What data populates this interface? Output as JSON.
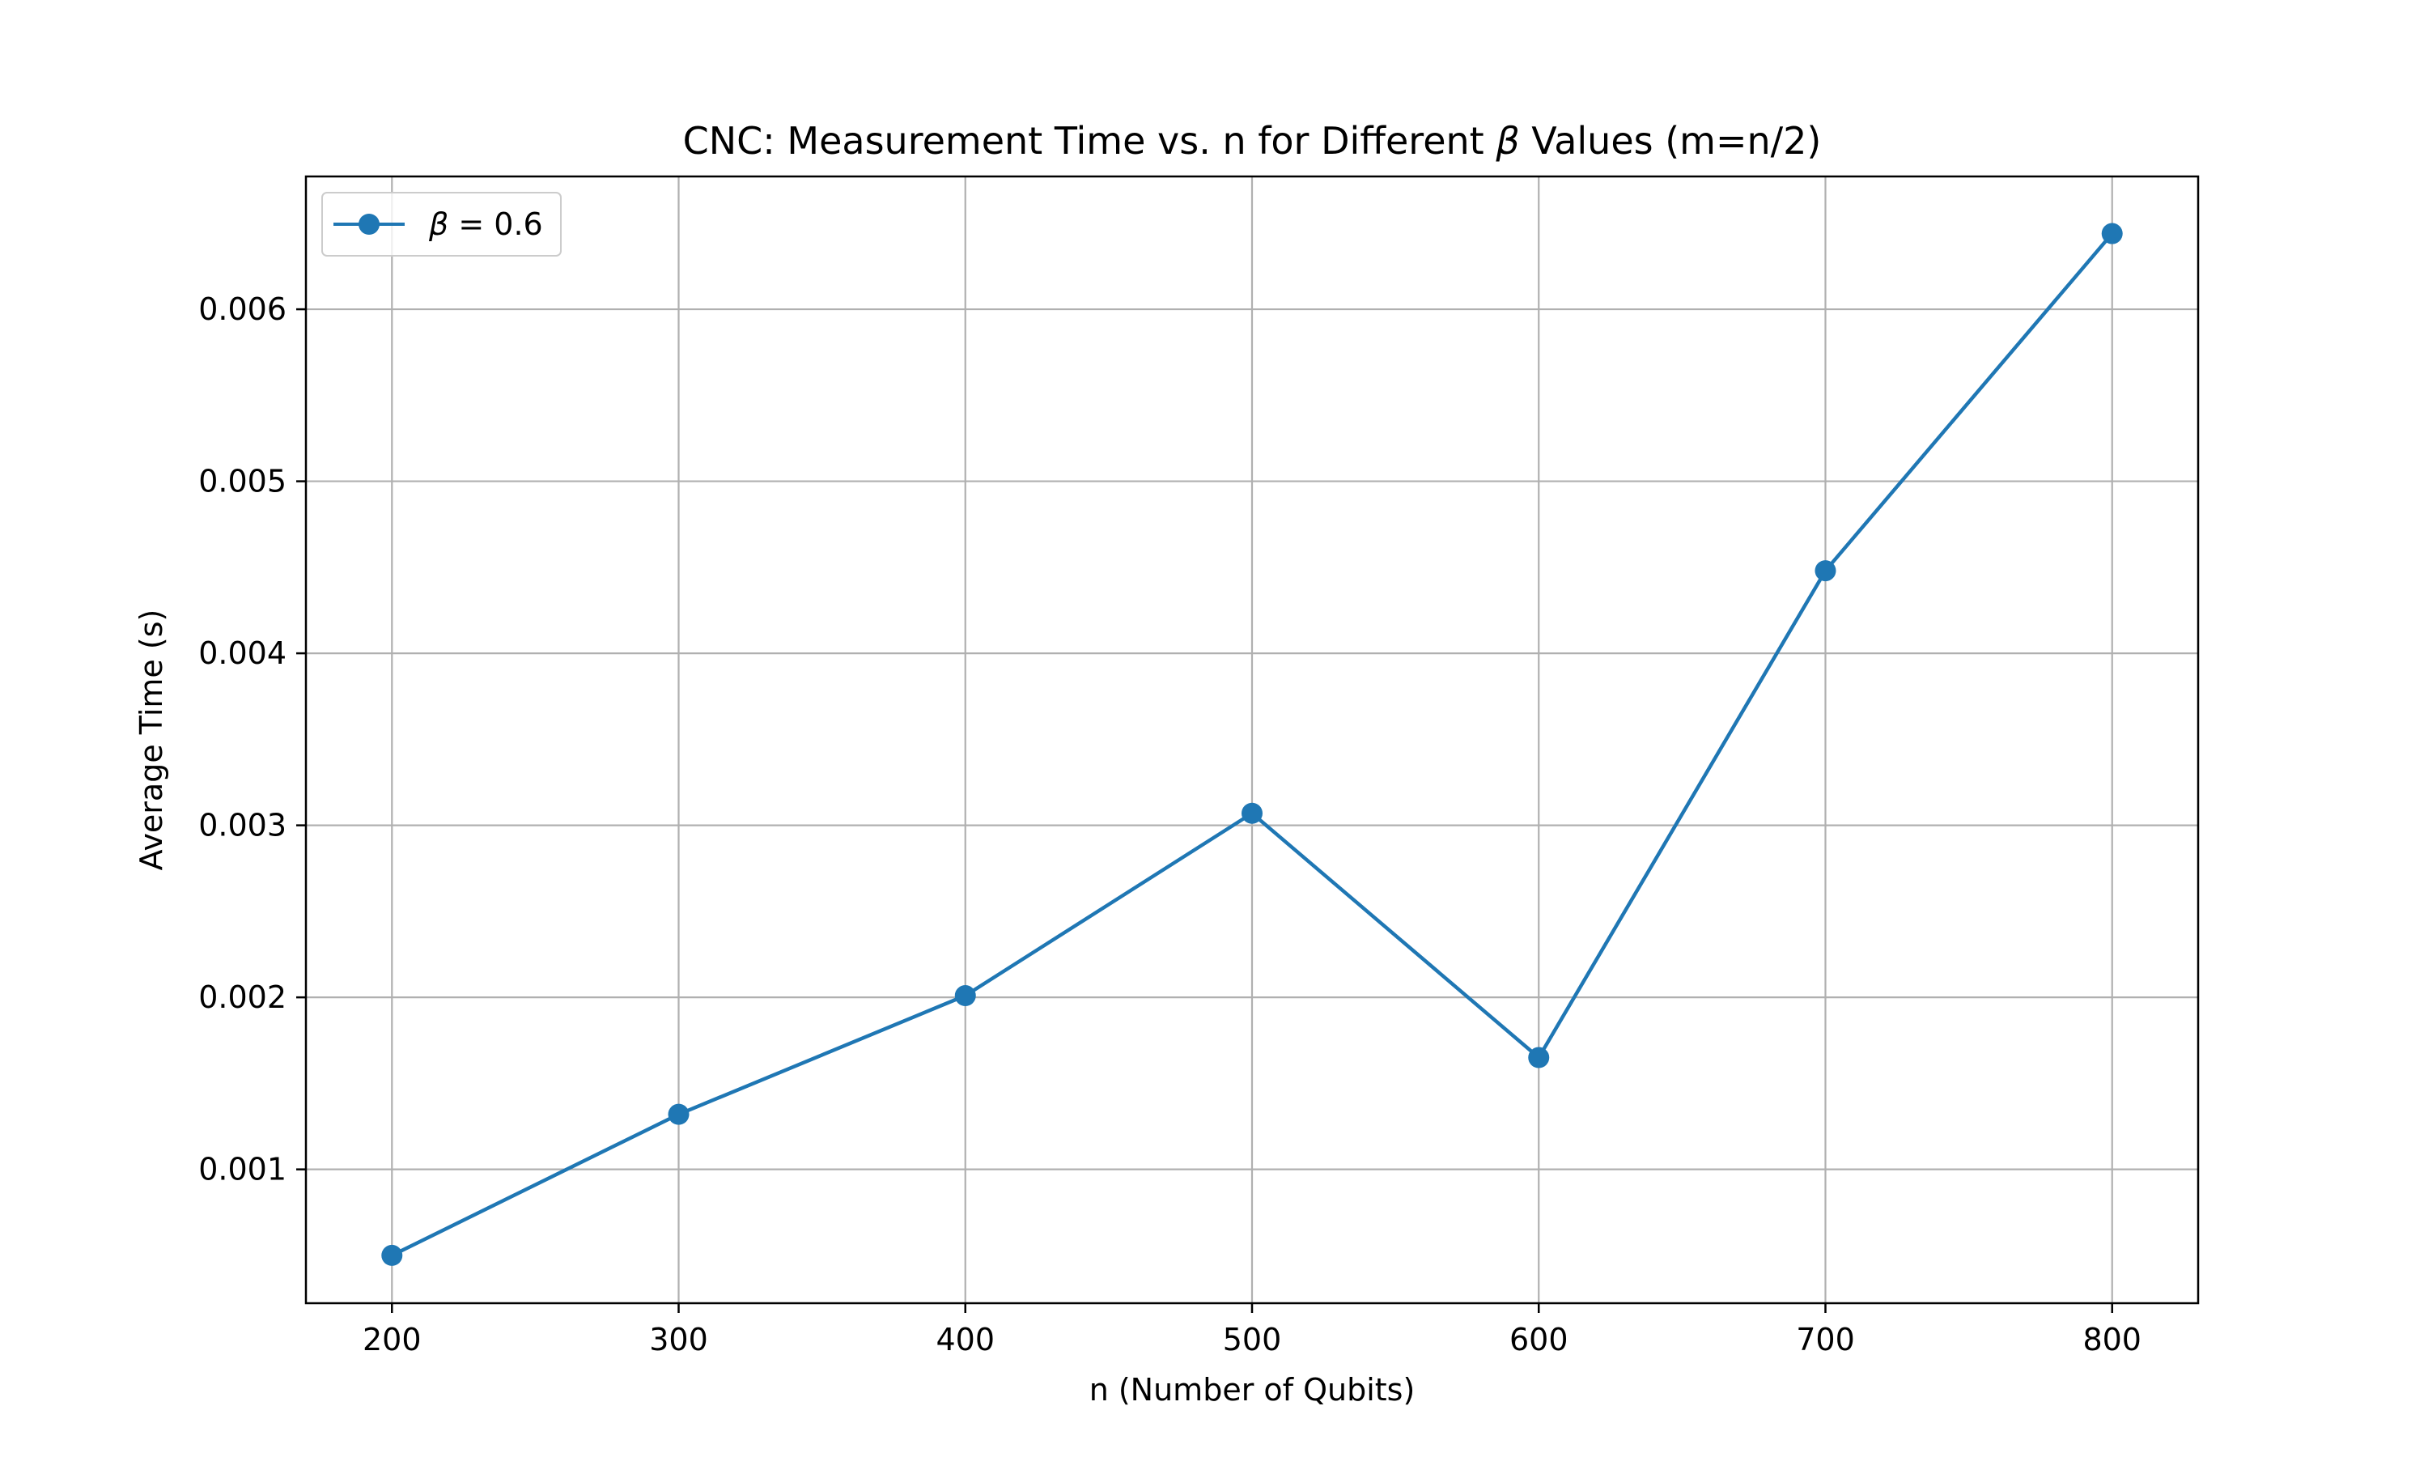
{
  "chart_data": {
    "type": "line",
    "title_parts": [
      "CNC: Measurement Time vs. n for Different ",
      "β",
      " Values (m=n/2)"
    ],
    "xlabel": "n (Number of Qubits)",
    "ylabel": "Average Time (s)",
    "x": [
      200,
      300,
      400,
      500,
      600,
      700,
      800
    ],
    "series": [
      {
        "name_parts": [
          "β",
          " = 0.6"
        ],
        "color": "#1f77b4",
        "marker": "circle",
        "values": [
          0.0005,
          0.00132,
          0.00201,
          0.00307,
          0.00165,
          0.00448,
          0.00644
        ]
      }
    ],
    "xlim": [
      170,
      830
    ],
    "ylim": [
      0.000222,
      0.006772
    ],
    "xticks": [
      200,
      300,
      400,
      500,
      600,
      700,
      800
    ],
    "xtick_labels": [
      "200",
      "300",
      "400",
      "500",
      "600",
      "700",
      "800"
    ],
    "yticks": [
      0.001,
      0.002,
      0.003,
      0.004,
      0.005,
      0.006
    ],
    "ytick_labels": [
      "0.001",
      "0.002",
      "0.003",
      "0.004",
      "0.005",
      "0.006"
    ],
    "grid": true,
    "legend_position": "upper-left"
  }
}
